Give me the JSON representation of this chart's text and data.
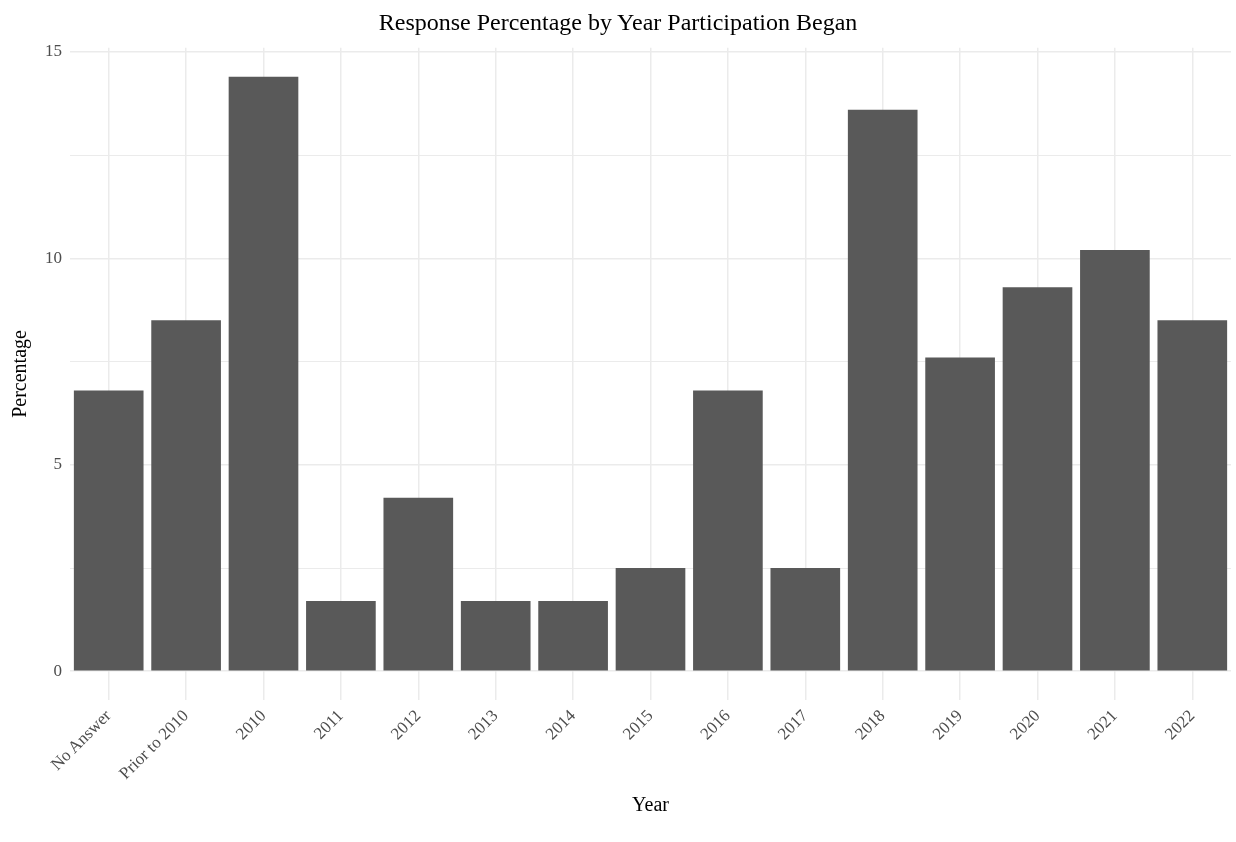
{
  "chart_data": {
    "type": "bar",
    "title": "Response Percentage by Year Participation Began",
    "xlabel": "Year",
    "ylabel": "Percentage",
    "categories": [
      "No Answer",
      "Prior to 2010",
      "2010",
      "2011",
      "2012",
      "2013",
      "2014",
      "2015",
      "2016",
      "2017",
      "2018",
      "2019",
      "2020",
      "2021",
      "2022"
    ],
    "values": [
      6.8,
      8.5,
      14.4,
      1.7,
      4.2,
      1.7,
      1.7,
      2.5,
      6.8,
      2.5,
      13.6,
      7.6,
      9.3,
      10.2,
      8.5
    ],
    "color": "#595959",
    "ylim": [
      -0.7,
      15.1
    ],
    "yticks": [
      0,
      {
        "value": 2.5,
        "label": null
      },
      5,
      {
        "value": 7.5,
        "label": null
      },
      10,
      {
        "value": 12.5,
        "label": null
      },
      15
    ],
    "grid": true
  }
}
